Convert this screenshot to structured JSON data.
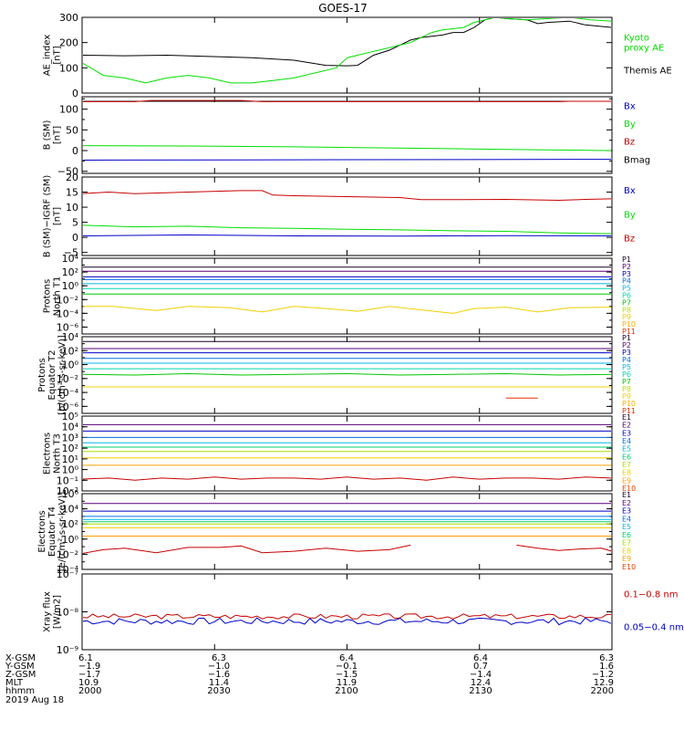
{
  "title": "GOES-17",
  "colors": {
    "black": "#000000",
    "green": "#00e000",
    "red": "#c80000",
    "blue": "#0000c8",
    "p": [
      "#1a0026",
      "#5a007a",
      "#0000c8",
      "#0070e8",
      "#00b8e8",
      "#00d8b0",
      "#00c800",
      "#b8e000",
      "#f0d000",
      "#ffb000",
      "#e83000",
      "#c80000"
    ],
    "e": [
      "#1a0026",
      "#5a007a",
      "#0000c8",
      "#0070e8",
      "#00b8e8",
      "#00d070",
      "#a8e000",
      "#f0d000",
      "#ffa000",
      "#e84000",
      "#c80000"
    ]
  },
  "chart_data": [
    {
      "id": "ae",
      "type": "line",
      "ylabel": [
        "AE_index",
        "[nT]"
      ],
      "ylim": [
        0,
        300
      ],
      "yticks": [
        0,
        100,
        200,
        300
      ],
      "tick_labels": [
        "0",
        "100",
        "200",
        "300"
      ],
      "legend": [
        {
          "text": [
            "Kyoto",
            "proxy AE"
          ],
          "color": "green"
        },
        {
          "text": [
            "Themis AE"
          ],
          "color": "black"
        }
      ],
      "series": [
        {
          "color": "black",
          "x": [
            0,
            8,
            16,
            24,
            32,
            40,
            46,
            50,
            52,
            55,
            58,
            60,
            62,
            64,
            66,
            68,
            70,
            72,
            74,
            76,
            78,
            80,
            84,
            86,
            88,
            92,
            95,
            100
          ],
          "y": [
            150,
            148,
            150,
            145,
            140,
            130,
            110,
            108,
            110,
            150,
            170,
            190,
            210,
            220,
            225,
            230,
            240,
            240,
            260,
            290,
            300,
            295,
            290,
            275,
            280,
            285,
            270,
            260
          ]
        },
        {
          "color": "green",
          "x": [
            0,
            4,
            8,
            12,
            16,
            20,
            24,
            28,
            32,
            36,
            40,
            44,
            48,
            50,
            52,
            54,
            56,
            58,
            60,
            62,
            64,
            66,
            68,
            70,
            72,
            74,
            76,
            78,
            80,
            84,
            88,
            92,
            96,
            100
          ],
          "y": [
            120,
            70,
            60,
            40,
            60,
            70,
            60,
            40,
            40,
            50,
            60,
            80,
            100,
            140,
            150,
            160,
            170,
            180,
            190,
            200,
            220,
            240,
            250,
            255,
            260,
            280,
            290,
            300,
            295,
            290,
            295,
            300,
            290,
            285
          ]
        }
      ]
    },
    {
      "id": "bsm",
      "type": "line",
      "ylabel": [
        "B (SM)",
        "[nT]"
      ],
      "ylim": [
        -55,
        130
      ],
      "yticks": [
        -50,
        0,
        50,
        100
      ],
      "tick_labels": [
        "−50",
        "0",
        "50",
        "100"
      ],
      "minor_ticks": [
        -25,
        25,
        75,
        125
      ],
      "legend": [
        {
          "text": [
            "Bx"
          ],
          "color": "blue"
        },
        {
          "text": [
            "By"
          ],
          "color": "green"
        },
        {
          "text": [
            "Bz"
          ],
          "color": "red"
        },
        {
          "text": [
            "Bmag"
          ],
          "color": "black"
        }
      ],
      "series": [
        {
          "color": "black",
          "x": [
            0,
            100
          ],
          "y": [
            119,
            119
          ]
        },
        {
          "color": "red",
          "x": [
            0,
            10,
            13,
            30,
            34,
            90,
            92,
            100
          ],
          "y": [
            118,
            118,
            121,
            121,
            118,
            118,
            119,
            119
          ]
        },
        {
          "color": "green",
          "x": [
            0,
            20,
            40,
            60,
            80,
            100
          ],
          "y": [
            12,
            11,
            9,
            6,
            3,
            0
          ]
        },
        {
          "color": "blue",
          "x": [
            0,
            50,
            100
          ],
          "y": [
            -23,
            -22,
            -21
          ]
        }
      ]
    },
    {
      "id": "bsmd",
      "type": "line",
      "ylabel": [
        "B (SM)−IGRF (SM)",
        "[nT]"
      ],
      "ylim": [
        -6,
        20
      ],
      "yticks": [
        -5,
        0,
        5,
        10,
        15,
        20
      ],
      "tick_labels": [
        "−5",
        "0",
        "5",
        "10",
        "15",
        "20"
      ],
      "legend": [
        {
          "text": [
            "Bx"
          ],
          "color": "blue"
        },
        {
          "text": [
            "By"
          ],
          "color": "green"
        },
        {
          "text": [
            "Bz"
          ],
          "color": "red"
        }
      ],
      "series": [
        {
          "color": "red",
          "x": [
            0,
            5,
            10,
            20,
            30,
            34,
            36,
            40,
            50,
            60,
            64,
            70,
            80,
            90,
            95,
            100
          ],
          "y": [
            14.5,
            15,
            14.5,
            15,
            15.5,
            15.5,
            14,
            13.8,
            13.5,
            13.2,
            12.5,
            12.5,
            12.6,
            12.3,
            12.6,
            12.8
          ]
        },
        {
          "color": "green",
          "x": [
            0,
            10,
            20,
            30,
            40,
            50,
            60,
            70,
            80,
            90,
            100
          ],
          "y": [
            4,
            3.5,
            3.7,
            3.2,
            3,
            2.7,
            2.5,
            2.2,
            2,
            1.5,
            1.2
          ]
        },
        {
          "color": "blue",
          "x": [
            0,
            20,
            40,
            60,
            80,
            100
          ],
          "y": [
            0.5,
            0.8,
            0.5,
            0.4,
            0.6,
            0.5
          ]
        }
      ]
    },
    {
      "id": "pn",
      "type": "line",
      "log": true,
      "ylabel": [
        "Protons",
        "North T1"
      ],
      "ylim": [
        -7,
        4
      ],
      "yticks": [
        -6,
        -4,
        -2,
        0,
        2,
        4
      ],
      "tick_labels": [
        "10⁻⁶",
        "10⁻⁴",
        "10⁻²",
        "10⁰",
        "10²",
        "10⁴"
      ],
      "legend_labels": [
        "P1",
        "P2",
        "P3",
        "P4",
        "P5",
        "P6",
        "P7",
        "P8",
        "P9",
        "P10",
        "P11"
      ],
      "series": [
        {
          "ci": 0,
          "x": [
            0,
            100
          ],
          "y": [
            2.7,
            2.7
          ]
        },
        {
          "ci": 1,
          "x": [
            0,
            100
          ],
          "y": [
            2.1,
            2.1
          ]
        },
        {
          "ci": 2,
          "x": [
            0,
            100
          ],
          "y": [
            1.3,
            1.3
          ]
        },
        {
          "ci": 3,
          "x": [
            0,
            100
          ],
          "y": [
            0.9,
            0.9
          ]
        },
        {
          "ci": 4,
          "x": [
            0,
            100
          ],
          "y": [
            0.3,
            0.3
          ]
        },
        {
          "ci": 5,
          "x": [
            0,
            100
          ],
          "y": [
            -0.4,
            -0.4
          ]
        },
        {
          "ci": 6,
          "x": [
            0,
            100
          ],
          "y": [
            -1.2,
            -1.2
          ]
        },
        {
          "ci": 8,
          "x": [
            0,
            6,
            14,
            20,
            28,
            34,
            40,
            46,
            52,
            58,
            64,
            70,
            74,
            80,
            86,
            92,
            100
          ],
          "y": [
            -3,
            -3,
            -3.6,
            -3,
            -3.2,
            -3.8,
            -3,
            -3.3,
            -3.7,
            -3,
            -3.5,
            -4,
            -3.3,
            -3.1,
            -3.8,
            -3.2,
            -3.1
          ]
        }
      ]
    },
    {
      "id": "pe",
      "type": "line",
      "log": true,
      "ylabel": [
        "Protons",
        "Equator T2",
        "[p/(cm²-s-sr-keV)]"
      ],
      "ylim": [
        -7,
        4
      ],
      "yticks": [
        -6,
        -4,
        -2,
        0,
        2,
        4
      ],
      "tick_labels": [
        "10⁻⁶",
        "10⁻⁴",
        "10⁻²",
        "10⁰",
        "10²",
        "10⁴"
      ],
      "legend_labels": [
        "P1",
        "P2",
        "P3",
        "P4",
        "P5",
        "P6",
        "P7",
        "P8",
        "P9",
        "P10",
        "P11"
      ],
      "series": [
        {
          "ci": 0,
          "x": [
            0,
            100
          ],
          "y": [
            3.3,
            3.3
          ]
        },
        {
          "ci": 1,
          "x": [
            0,
            100
          ],
          "y": [
            2.3,
            2.3
          ]
        },
        {
          "ci": 2,
          "x": [
            0,
            100
          ],
          "y": [
            1.7,
            1.7
          ]
        },
        {
          "ci": 3,
          "x": [
            0,
            100
          ],
          "y": [
            0.9,
            0.9
          ]
        },
        {
          "ci": 4,
          "x": [
            0,
            100
          ],
          "y": [
            0.2,
            0.2
          ]
        },
        {
          "ci": 5,
          "x": [
            0,
            100
          ],
          "y": [
            -0.6,
            -0.6
          ]
        },
        {
          "ci": 6,
          "x": [
            0,
            10,
            20,
            30,
            40,
            50,
            60,
            70,
            80,
            90,
            100
          ],
          "y": [
            -1.4,
            -1.5,
            -1.3,
            -1.5,
            -1.4,
            -1.3,
            -1.5,
            -1.4,
            -1.3,
            -1.5,
            -1.4
          ]
        },
        {
          "ci": 8,
          "x": [
            0,
            100
          ],
          "y": [
            -3.2,
            -3.2
          ]
        },
        {
          "ci": 10,
          "x": [
            80,
            86
          ],
          "y": [
            -4.8,
            -4.8
          ]
        }
      ]
    },
    {
      "id": "en",
      "type": "line",
      "log": true,
      "ylabel": [
        "Electrons",
        "North T3"
      ],
      "ylim": [
        -2,
        5
      ],
      "yticks": [
        -2,
        -1,
        0,
        1,
        2,
        3,
        4,
        5
      ],
      "tick_labels": [
        "10⁻²",
        "10⁻¹",
        "10⁰",
        "10¹",
        "10²",
        "10³",
        "10⁴",
        "10⁵"
      ],
      "legend_labels": [
        "E1",
        "E2",
        "E3",
        "E4",
        "E5",
        "E6",
        "E7",
        "E8",
        "E9",
        "E10"
      ],
      "series": [
        {
          "ci": 1,
          "x": [
            0,
            100
          ],
          "y": [
            4.2,
            4.2
          ]
        },
        {
          "ci": 2,
          "x": [
            0,
            100
          ],
          "y": [
            3.6,
            3.6
          ]
        },
        {
          "ci": 3,
          "x": [
            0,
            100
          ],
          "y": [
            3.0,
            3.0
          ]
        },
        {
          "ci": 4,
          "x": [
            0,
            100
          ],
          "y": [
            2.5,
            2.5
          ]
        },
        {
          "ci": 5,
          "x": [
            0,
            100
          ],
          "y": [
            2.1,
            2.1
          ]
        },
        {
          "ci": 6,
          "x": [
            0,
            100
          ],
          "y": [
            1.7,
            1.7
          ]
        },
        {
          "ci": 7,
          "x": [
            0,
            100
          ],
          "y": [
            1.1,
            1.1
          ]
        },
        {
          "ci": 8,
          "x": [
            0,
            100
          ],
          "y": [
            0.4,
            0.4
          ]
        },
        {
          "ci": 10,
          "x": [
            0,
            5,
            10,
            15,
            20,
            25,
            30,
            35,
            40,
            45,
            50,
            55,
            60,
            65,
            70,
            75,
            80,
            85,
            90,
            95,
            100
          ],
          "y": [
            -0.9,
            -0.8,
            -1,
            -0.8,
            -0.9,
            -0.7,
            -0.9,
            -0.8,
            -0.8,
            -0.9,
            -0.7,
            -0.9,
            -0.8,
            -1,
            -0.7,
            -0.9,
            -0.8,
            -0.8,
            -0.9,
            -0.7,
            -0.8
          ]
        }
      ]
    },
    {
      "id": "ee",
      "type": "line",
      "log": true,
      "ylabel": [
        "Electrons",
        "Equator T4",
        "[e/(cm²-s-sr-keV)]"
      ],
      "ylim": [
        -4,
        6
      ],
      "yticks": [
        -4,
        -2,
        0,
        2,
        4,
        6
      ],
      "tick_labels": [
        "10⁻⁴",
        "10⁻²",
        "10⁰",
        "10²",
        "10⁴",
        "10⁶"
      ],
      "legend_labels": [
        "E1",
        "E2",
        "E3",
        "E4",
        "E5",
        "E6",
        "E7",
        "E8",
        "E9",
        "E10"
      ],
      "series": [
        {
          "ci": 1,
          "x": [
            0,
            100
          ],
          "y": [
            4.7,
            4.7
          ]
        },
        {
          "ci": 2,
          "x": [
            0,
            100
          ],
          "y": [
            3.7,
            3.7
          ]
        },
        {
          "ci": 3,
          "x": [
            0,
            100
          ],
          "y": [
            3.0,
            3.0
          ]
        },
        {
          "ci": 4,
          "x": [
            0,
            100
          ],
          "y": [
            2.6,
            2.6
          ]
        },
        {
          "ci": 5,
          "x": [
            0,
            100
          ],
          "y": [
            2.3,
            2.3
          ]
        },
        {
          "ci": 6,
          "x": [
            0,
            100
          ],
          "y": [
            2.0,
            2.0
          ]
        },
        {
          "ci": 7,
          "x": [
            0,
            100
          ],
          "y": [
            1.5,
            1.5
          ]
        },
        {
          "ci": 8,
          "x": [
            0,
            100
          ],
          "y": [
            0.4,
            0.4
          ]
        },
        {
          "ci": 10,
          "x": [
            0,
            4,
            8,
            14,
            20,
            26,
            30,
            34,
            40,
            46,
            52,
            58,
            62
          ],
          "y": [
            -1.9,
            -1.4,
            -1.2,
            -1.8,
            -1.1,
            -1.1,
            -0.9,
            -1.8,
            -1.6,
            -1.2,
            -1.6,
            -1.4,
            -0.8
          ]
        },
        {
          "ci": 10,
          "x": [
            82,
            86,
            90,
            94,
            98,
            100
          ],
          "y": [
            -0.8,
            -1.2,
            -1.5,
            -1.3,
            -1.2,
            -1.6
          ]
        }
      ]
    },
    {
      "id": "xray",
      "type": "line",
      "log": true,
      "ylabel": [
        "Xray flux",
        "[W/m2]"
      ],
      "ylim": [
        -9,
        -7
      ],
      "yticks": [
        -9,
        -8,
        -7
      ],
      "tick_labels": [
        "10⁻⁹",
        "10⁻⁸",
        "10⁻⁷"
      ],
      "legend": [
        {
          "text": [
            "0.1−0.8 nm"
          ],
          "color": "red"
        },
        {
          "text": [
            "0.05−0.4 nm"
          ],
          "color": "blue"
        }
      ],
      "series": [
        {
          "color": "red",
          "x": [
            0,
            100
          ],
          "y": [
            -8.12,
            -8.12
          ],
          "noise": 0.07,
          "seed": 3
        },
        {
          "color": "blue",
          "x": [
            0,
            100
          ],
          "y": [
            -8.25,
            -8.25
          ],
          "noise": 0.09,
          "seed": 7
        }
      ]
    }
  ],
  "x_axis": {
    "row_labels": [
      "X-GSM",
      "Y-GSM",
      "Z-GSM",
      "MLT",
      "hhmm",
      "2019 Aug 18"
    ],
    "columns": [
      {
        "vals": [
          "6.1",
          "−1.9",
          "−1.7",
          "10.9",
          "2000"
        ]
      },
      {
        "vals": [
          "6.3",
          "−1.0",
          "−1.6",
          "11.4",
          "2030"
        ]
      },
      {
        "vals": [
          "6.4",
          "−0.1",
          "−1.5",
          "11.9",
          "2100"
        ]
      },
      {
        "vals": [
          "6.4",
          "0.7",
          "−1.4",
          "12.4",
          "2130"
        ]
      },
      {
        "vals": [
          "6.3",
          "1.6",
          "−1.2",
          "12.9",
          "2200"
        ]
      }
    ]
  }
}
